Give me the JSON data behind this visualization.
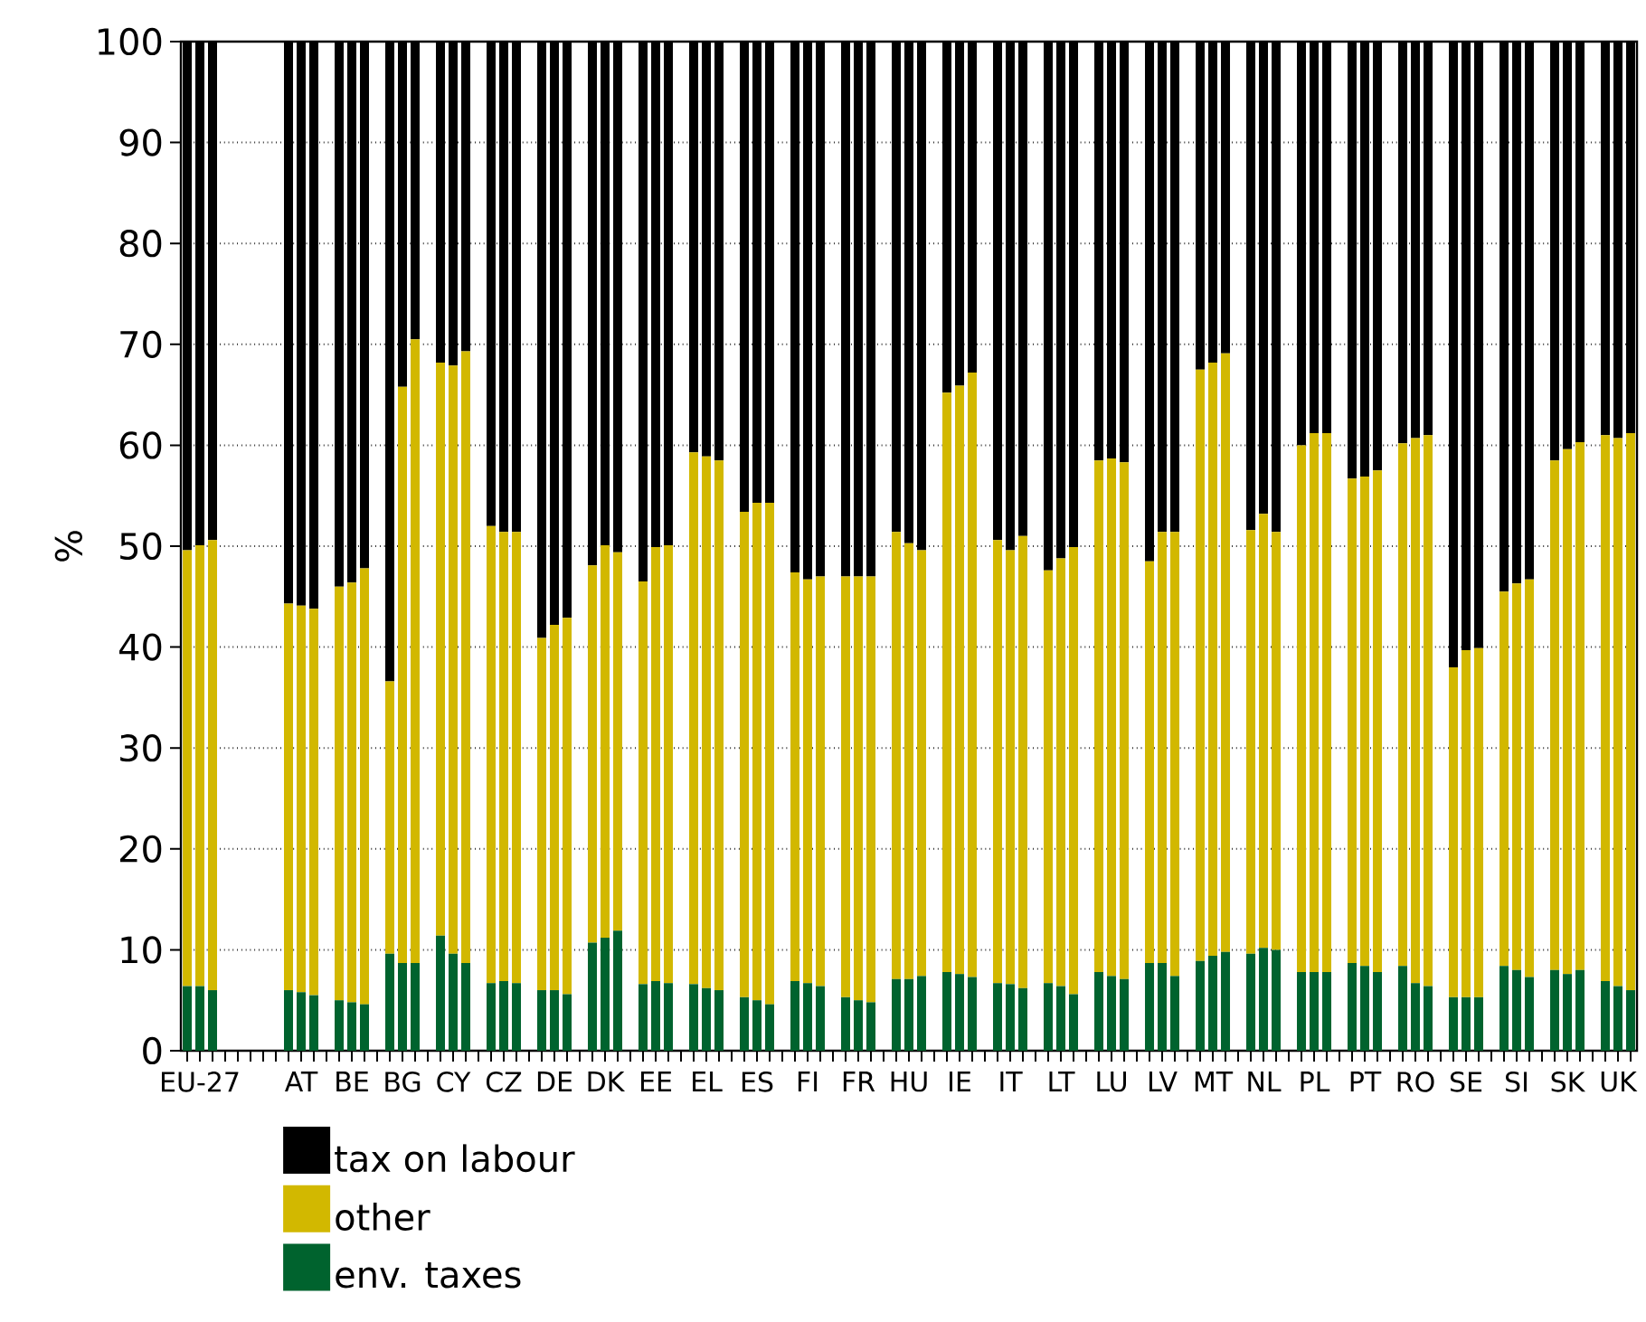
{
  "chart_data": {
    "type": "bar",
    "stacked": true,
    "ylabel": "%",
    "ylim": [
      0,
      100
    ],
    "yticks": [
      0,
      10,
      20,
      30,
      40,
      50,
      60,
      70,
      80,
      90,
      100
    ],
    "grid": "y",
    "legend": "bottom",
    "categories": [
      null,
      "EU-27",
      null,
      null,
      null,
      null,
      null,
      null,
      null,
      "AT",
      null,
      null,
      null,
      "BE",
      null,
      null,
      null,
      "BG",
      null,
      null,
      null,
      "CY",
      null,
      null,
      null,
      "CZ",
      null,
      null,
      null,
      "DE",
      null,
      null,
      null,
      "DK",
      null,
      null,
      null,
      "EE",
      null,
      null,
      null,
      "EL",
      null,
      null,
      null,
      "ES",
      null,
      null,
      null,
      "FI",
      null,
      null,
      null,
      "FR",
      null,
      null,
      null,
      "HU",
      null,
      null,
      null,
      "IE",
      null,
      null,
      null,
      "IT",
      null,
      null,
      null,
      "LT",
      null,
      null,
      null,
      "LU",
      null,
      null,
      null,
      "LV",
      null,
      null,
      null,
      "MT",
      null,
      null,
      null,
      "NL",
      null,
      null,
      null,
      "PL",
      null,
      null,
      null,
      "PT",
      null,
      null,
      null,
      "RO",
      null,
      null,
      null,
      "SE",
      null,
      null,
      null,
      "SI",
      null,
      null,
      null,
      "SK",
      null,
      null,
      null,
      "UK",
      null
    ],
    "series": [
      {
        "name": "env. taxes",
        "color": "#00632e",
        "values": [
          6.4,
          6.4,
          6.0,
          null,
          null,
          null,
          null,
          null,
          6.0,
          5.8,
          5.5,
          null,
          5.0,
          4.8,
          4.6,
          null,
          9.6,
          8.7,
          8.7,
          null,
          11.4,
          9.6,
          8.7,
          null,
          6.7,
          6.9,
          6.7,
          null,
          6.0,
          6.0,
          5.6,
          null,
          10.7,
          11.2,
          11.9,
          null,
          6.6,
          6.9,
          6.7,
          null,
          6.6,
          6.2,
          6.0,
          null,
          5.3,
          5.0,
          4.6,
          null,
          6.9,
          6.7,
          6.4,
          null,
          5.3,
          5.0,
          4.8,
          null,
          7.1,
          7.1,
          7.4,
          null,
          7.8,
          7.6,
          7.3,
          null,
          6.7,
          6.6,
          6.2,
          null,
          6.7,
          6.4,
          5.6,
          null,
          7.8,
          7.4,
          7.1,
          null,
          8.7,
          8.7,
          7.4,
          null,
          8.9,
          9.4,
          9.8,
          null,
          9.6,
          10.2,
          10.0,
          null,
          7.8,
          7.8,
          7.8,
          null,
          8.7,
          8.4,
          7.8,
          null,
          8.4,
          6.7,
          6.4,
          null,
          5.3,
          5.3,
          5.3,
          null,
          8.4,
          8.0,
          7.3,
          null,
          8.0,
          7.6,
          8.0,
          null,
          6.9,
          6.4,
          6.0
        ]
      },
      {
        "name": "other",
        "color": "#d2b800",
        "values": [
          43.2,
          43.7,
          44.6,
          null,
          null,
          null,
          null,
          null,
          38.3,
          38.3,
          38.3,
          null,
          41.0,
          41.6,
          43.2,
          null,
          27.0,
          57.1,
          61.8,
          null,
          56.8,
          58.3,
          60.6,
          null,
          45.3,
          44.5,
          44.7,
          null,
          34.9,
          36.2,
          37.3,
          null,
          37.4,
          38.9,
          37.5,
          null,
          39.9,
          43.0,
          43.4,
          null,
          52.7,
          52.7,
          52.5,
          null,
          48.1,
          49.3,
          49.7,
          null,
          40.5,
          40.0,
          40.6,
          null,
          41.7,
          42.0,
          42.2,
          null,
          44.3,
          43.2,
          42.2,
          null,
          57.4,
          58.3,
          59.9,
          null,
          43.9,
          43.0,
          44.8,
          null,
          40.9,
          42.4,
          44.3,
          null,
          50.7,
          51.3,
          51.2,
          null,
          39.8,
          42.7,
          44.0,
          null,
          58.6,
          58.8,
          59.3,
          null,
          42.0,
          43.0,
          41.4,
          null,
          52.2,
          53.4,
          53.4,
          null,
          48.0,
          48.5,
          49.7,
          null,
          51.8,
          54.0,
          54.6,
          null,
          32.7,
          34.4,
          34.6,
          null,
          37.1,
          38.3,
          39.4,
          null,
          50.5,
          52.0,
          52.3,
          null,
          54.1,
          54.3,
          55.2
        ]
      },
      {
        "name": "tax on labour",
        "color": "#000000",
        "values": [
          50.4,
          49.9,
          49.4,
          null,
          null,
          null,
          null,
          null,
          55.7,
          55.9,
          56.2,
          null,
          54.0,
          53.6,
          52.2,
          null,
          63.4,
          34.2,
          29.5,
          null,
          31.8,
          32.1,
          30.7,
          null,
          48.0,
          48.6,
          48.6,
          null,
          59.1,
          57.8,
          57.1,
          null,
          51.9,
          49.9,
          50.6,
          null,
          53.5,
          50.1,
          49.9,
          null,
          40.7,
          41.1,
          41.5,
          null,
          46.6,
          45.7,
          45.7,
          null,
          52.6,
          53.3,
          53.0,
          null,
          53.0,
          53.0,
          53.0,
          null,
          48.6,
          49.7,
          50.4,
          null,
          34.8,
          34.1,
          32.8,
          null,
          49.4,
          50.4,
          49.0,
          null,
          52.4,
          51.2,
          50.1,
          null,
          41.5,
          41.3,
          41.7,
          null,
          51.5,
          48.6,
          48.6,
          null,
          32.5,
          31.8,
          30.9,
          null,
          48.4,
          46.8,
          48.6,
          null,
          40.0,
          38.8,
          38.8,
          null,
          43.3,
          43.1,
          42.5,
          null,
          39.8,
          39.3,
          39.0,
          null,
          62.0,
          60.3,
          60.1,
          null,
          54.5,
          53.7,
          53.3,
          null,
          41.5,
          40.4,
          39.7,
          null,
          39.0,
          39.3,
          38.8
        ]
      }
    ]
  }
}
